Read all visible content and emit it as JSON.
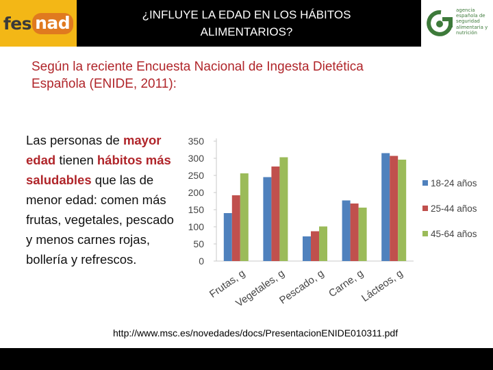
{
  "header": {
    "title_line1": "¿INFLUYE LA EDAD EN LOS HÁBITOS",
    "title_line2": "ALIMENTARIOS?",
    "logo_left": {
      "prefix": "fes",
      "suffix": "nad"
    },
    "logo_right": {
      "lines": [
        "agencia",
        "española de",
        "seguridad",
        "alimentaria y",
        "nutrición"
      ]
    }
  },
  "subtitle": {
    "line1": "Según la reciente Encuesta Nacional de Ingesta Dietética",
    "line2": "Española (ENIDE, 2011):"
  },
  "body": {
    "t1": "Las personas de ",
    "h1": "mayor edad",
    "t2": " tienen ",
    "h2": "hábitos más saludables",
    "t3": " que las de menor edad: comen más frutas, vegetales, pescado y menos carnes rojas, bollería y refrescos."
  },
  "source_url": "http://www.msc.es/novedades/docs/PresentacionENIDE010311.pdf",
  "colors": {
    "header_bg": "#000000",
    "logo_yellow": "#f3b716",
    "logo_orange": "#e07a1f",
    "accent_red": "#b0252a",
    "agency_green": "#3d7a3a"
  },
  "chart_data": {
    "type": "bar",
    "title": "",
    "xlabel": "",
    "ylabel": "",
    "ylim": [
      0,
      350
    ],
    "yticks": [
      0,
      50,
      100,
      150,
      200,
      250,
      300,
      350
    ],
    "grid": false,
    "legend_position": "right",
    "categories": [
      "Frutas, g",
      "Vegetales, g",
      "Pescado, g",
      "Carne, g",
      "Lácteos, g"
    ],
    "series": [
      {
        "name": "18-24 años",
        "color": "#4f81bd",
        "values": [
          140,
          245,
          72,
          177,
          315
        ]
      },
      {
        "name": "25-44 años",
        "color": "#c0504d",
        "values": [
          192,
          276,
          87,
          168,
          307
        ]
      },
      {
        "name": "45-64 años",
        "color": "#9bbb59",
        "values": [
          256,
          303,
          101,
          156,
          296
        ]
      }
    ]
  }
}
